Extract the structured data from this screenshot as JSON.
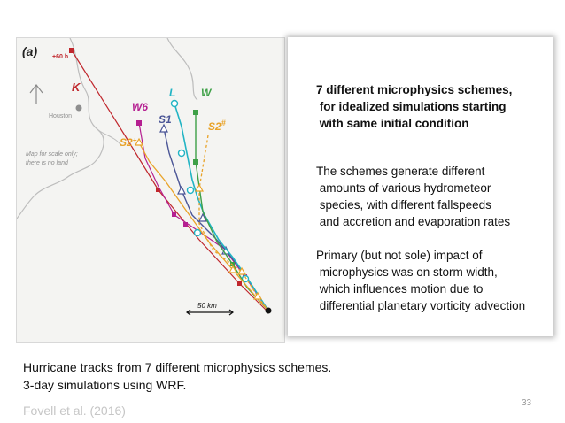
{
  "figure": {
    "panel_label": "(a)",
    "time_label": "+60 h",
    "city": "Houston",
    "map_note": [
      "Map for scale only;",
      "there is no land"
    ],
    "scale_bar_label": "50 km",
    "track_labels": {
      "K": "K",
      "W6": "W6",
      "S1": "S1",
      "L": "L",
      "W": "W",
      "S2": "S2",
      "S2_sup": "+",
      "S2h": "S2",
      "S2h_sup": "#"
    },
    "colors": {
      "K": "#c0272d",
      "W6": "#b51f91",
      "S1": "#4a5596",
      "L": "#22b4c4",
      "W": "#3ea047",
      "S2": "#e9a329",
      "S2h": "#e9a329",
      "land": "#bdbdbd",
      "map_bg": "#f4f4f2"
    }
  },
  "text_box": {
    "heading_lines": [
      "7 different microphysics schemes,",
      " for idealized simulations starting",
      " with same initial condition"
    ],
    "para1_lines": [
      "The schemes generate different",
      " amounts of various hydrometeor",
      " species, with different fallspeeds",
      " and accretion and evaporation rates"
    ],
    "para2_lines": [
      "Primary (but not sole) impact of",
      " microphysics was on storm width,",
      " which influences motion due to",
      " differential planetary vorticity advection"
    ]
  },
  "caption": {
    "line1": "Hurricane tracks from 7 different microphysics schemes.",
    "line2": "3-day simulations using WRF."
  },
  "citation": "Fovell et al. (2016)",
  "page_number": "33"
}
